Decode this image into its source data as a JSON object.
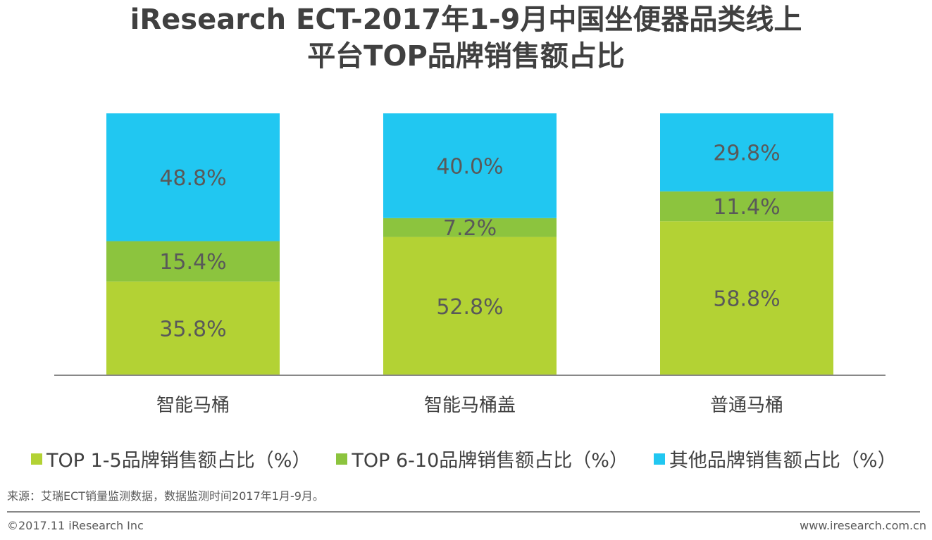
{
  "chart_data": {
    "type": "bar",
    "stacked": true,
    "title": "iResearch ECT-2017年1-9月中国坐便器品类线上平台TOP品牌销售额占比",
    "title_lines": [
      "iResearch ECT-2017年1-9月中国坐便器品类线上",
      "平台TOP品牌销售额占比"
    ],
    "categories": [
      "智能马桶",
      "智能马桶盖",
      "普通马桶"
    ],
    "series": [
      {
        "name": "TOP 1-5品牌销售额占比（%）",
        "values": [
          35.8,
          52.8,
          58.8
        ],
        "color": "#b3d234"
      },
      {
        "name": "TOP 6-10品牌销售额占比（%）",
        "values": [
          15.4,
          7.2,
          11.4
        ],
        "color": "#8cc43e"
      },
      {
        "name": "其他品牌销售额占比（%）",
        "values": [
          48.8,
          40.0,
          29.8
        ],
        "color": "#21c7f1"
      }
    ],
    "ylim": [
      0,
      100
    ],
    "grid": false,
    "legend_position": "bottom",
    "xlabel": "",
    "ylabel": ""
  },
  "footer": {
    "source": "来源：艾瑞ECT销量监测数据，数据监测时间2017年1月-9月。",
    "copyright": "©2017.11 iResearch Inc",
    "website": "www.iresearch.com.cn"
  }
}
